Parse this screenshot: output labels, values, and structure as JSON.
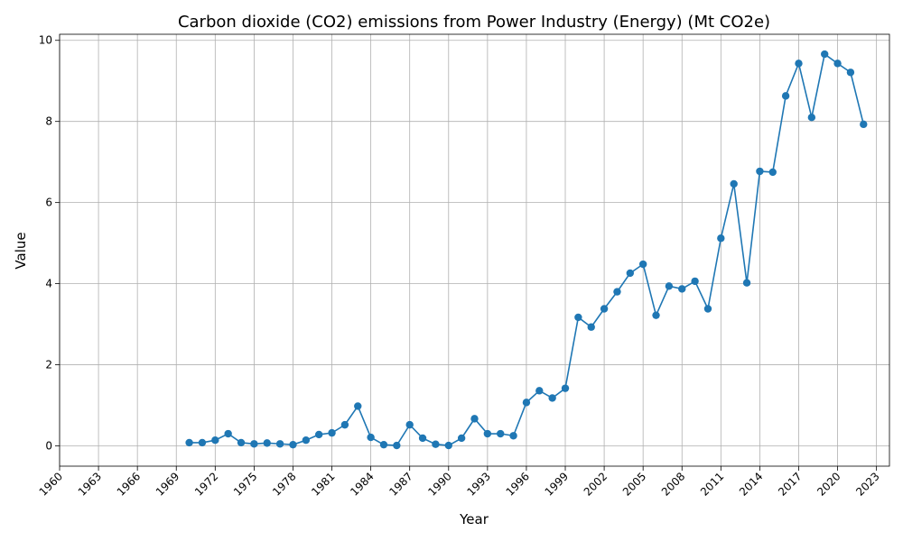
{
  "chart_data": {
    "type": "line",
    "title": "Carbon dioxide (CO2) emissions from Power Industry (Energy) (Mt CO2e)",
    "xlabel": "Year",
    "ylabel": "Value",
    "xlim": [
      1960,
      2024
    ],
    "ylim": [
      -0.5,
      10.15
    ],
    "xticks": [
      1960,
      1963,
      1966,
      1969,
      1972,
      1975,
      1978,
      1981,
      1984,
      1987,
      1990,
      1993,
      1996,
      1999,
      2002,
      2005,
      2008,
      2011,
      2014,
      2017,
      2020,
      2023
    ],
    "yticks": [
      0,
      2,
      4,
      6,
      8,
      10
    ],
    "grid": true,
    "color": "#1f77b4",
    "x": [
      1970,
      1971,
      1972,
      1973,
      1974,
      1975,
      1976,
      1977,
      1978,
      1979,
      1980,
      1981,
      1982,
      1983,
      1984,
      1985,
      1986,
      1987,
      1988,
      1989,
      1990,
      1991,
      1992,
      1993,
      1994,
      1995,
      1996,
      1997,
      1998,
      1999,
      2000,
      2001,
      2002,
      2003,
      2004,
      2005,
      2006,
      2007,
      2008,
      2009,
      2010,
      2011,
      2012,
      2013,
      2014,
      2015,
      2016,
      2017,
      2018,
      2019,
      2020,
      2021,
      2022
    ],
    "values": [
      0.08,
      0.08,
      0.14,
      0.3,
      0.08,
      0.05,
      0.07,
      0.05,
      0.03,
      0.14,
      0.28,
      0.32,
      0.52,
      0.98,
      0.21,
      0.03,
      0.01,
      0.52,
      0.19,
      0.04,
      0.01,
      0.19,
      0.67,
      0.3,
      0.3,
      0.25,
      1.07,
      1.36,
      1.18,
      1.42,
      3.17,
      2.93,
      3.38,
      3.8,
      4.26,
      4.48,
      3.22,
      3.94,
      3.87,
      4.06,
      3.38,
      5.12,
      6.46,
      4.02,
      6.77,
      6.75,
      8.63,
      9.43,
      8.1,
      9.66,
      9.43,
      9.21,
      7.93
    ]
  }
}
